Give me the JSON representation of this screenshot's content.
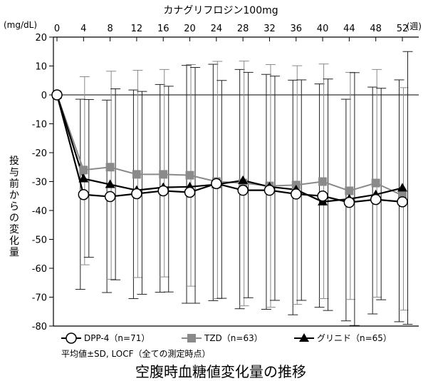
{
  "chart_data": {
    "type": "line",
    "title": "空腹時血糖値変化量の推移",
    "top_title": "カナグリフロジン100mg",
    "xlabel": "(週)",
    "ylabel": "投与前からの変化量",
    "yunit": "(mg/dL)",
    "x": [
      0,
      4,
      8,
      12,
      16,
      20,
      24,
      28,
      32,
      36,
      40,
      44,
      48,
      52
    ],
    "xticks": [
      "0",
      "4",
      "8",
      "12",
      "16",
      "20",
      "24",
      "28",
      "32",
      "36",
      "40",
      "44",
      "48",
      "52"
    ],
    "ylim": [
      -80,
      20
    ],
    "yticks": [
      "20",
      "10",
      "0",
      "-10",
      "-20",
      "-30",
      "-40",
      "-50",
      "-60",
      "-70",
      "-80"
    ],
    "grid": false,
    "legend_position": "bottom-left",
    "note": "平均値±SD, LOCF（全ての測定時点）",
    "series": [
      {
        "name": "DPP-4（n=71）",
        "marker": "circle-open",
        "color": "#000000",
        "values": [
          0,
          -34.5,
          -35.2,
          -34.2,
          -33.2,
          -33.7,
          -30.7,
          -33.0,
          -33.0,
          -34.3,
          -35.0,
          -37.2,
          -36.2,
          -37.0
        ],
        "sd_upper": [
          0,
          -1.5,
          -1.8,
          1.7,
          3.6,
          10.2,
          10.6,
          8.8,
          7.1,
          5.1,
          3.8,
          -1.5,
          2.7,
          5.2
        ],
        "sd_lower": [
          0,
          -67.3,
          -68.4,
          -70.5,
          -68.3,
          -72.1,
          -71.2,
          -74.0,
          -74.2,
          -76.1,
          -73.5,
          -78.2,
          -75.8,
          -78.5
        ]
      },
      {
        "name": "TZD（n=63）",
        "marker": "square",
        "color": "#888888",
        "values": [
          0,
          -26.0,
          -25.0,
          -27.5,
          -27.5,
          -27.8,
          -30.0,
          -30.5,
          -31.5,
          -31.2,
          -30.0,
          -33.2,
          -30.5,
          -34.8
        ],
        "sd_upper": [
          0,
          6.3,
          8.2,
          8.5,
          8.8,
          10.5,
          11.6,
          11.7,
          10.5,
          10.1,
          10.7,
          7.8,
          8.8,
          2.5
        ],
        "sd_lower": [
          0,
          -58.8,
          -63.8,
          -63.2,
          -63.0,
          -66.2,
          -70.5,
          -73.0,
          -73.5,
          -72.5,
          -70.5,
          -70.8,
          -70.0,
          -74.5
        ]
      },
      {
        "name": "グリニド（n=65）",
        "marker": "triangle",
        "color": "#000000",
        "values": [
          0,
          -29.0,
          -31.0,
          -33.0,
          -32.0,
          -31.8,
          -31.0,
          -29.6,
          -31.8,
          -32.8,
          -37.0,
          -36.0,
          -34.5,
          -32.2
        ],
        "sd_upper": [
          0,
          -1.6,
          2.1,
          1.2,
          3.0,
          9.5,
          5.0,
          7.8,
          6.5,
          5.2,
          5.5,
          7.7,
          2.3,
          15.0
        ],
        "sd_lower": [
          0,
          -56.2,
          -64.0,
          -69.0,
          -68.2,
          -72.1,
          -70.4,
          -70.2,
          -71.1,
          -71.1,
          -74.6,
          -79.8,
          -70.9,
          -79.4
        ]
      }
    ]
  }
}
